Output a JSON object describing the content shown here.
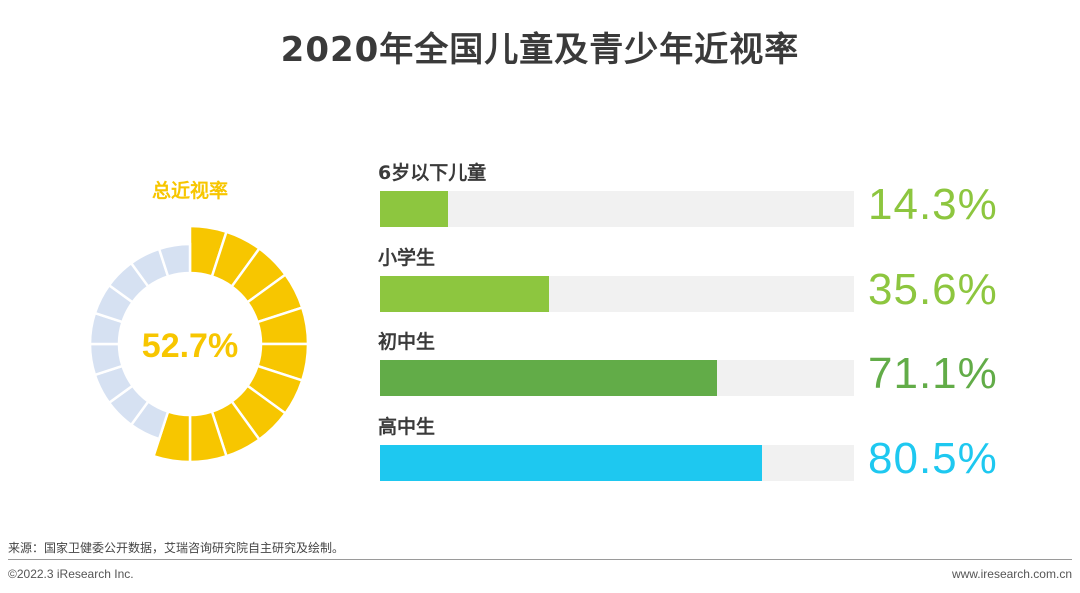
{
  "title": "2020年全国儿童及青少年近视率",
  "chart_data": [
    {
      "type": "pie",
      "title": "总近视率",
      "value": 52.7,
      "value_label": "52.7%",
      "colors": {
        "filled": "#f7c600",
        "remaining": "#d6e1f2",
        "center": "#ffffff"
      }
    },
    {
      "type": "bar",
      "orientation": "horizontal",
      "categories": [
        "6岁以下儿童",
        "小学生",
        "初中生",
        "高中生"
      ],
      "values": [
        14.3,
        35.6,
        71.1,
        80.5
      ],
      "value_labels": [
        "14.3%",
        "35.6%",
        "71.1%",
        "80.5%"
      ],
      "xlim": [
        0,
        100
      ],
      "colors": [
        "#8dc63f",
        "#8dc63f",
        "#62ac48",
        "#1ec8f0"
      ],
      "track_color": "#f1f1f1"
    }
  ],
  "footer": {
    "source": "来源：国家卫健委公开数据，艾瑞咨询研究院自主研究及绘制。",
    "copyright": "©2022.3 iResearch Inc.",
    "website": "www.iresearch.com.cn"
  }
}
